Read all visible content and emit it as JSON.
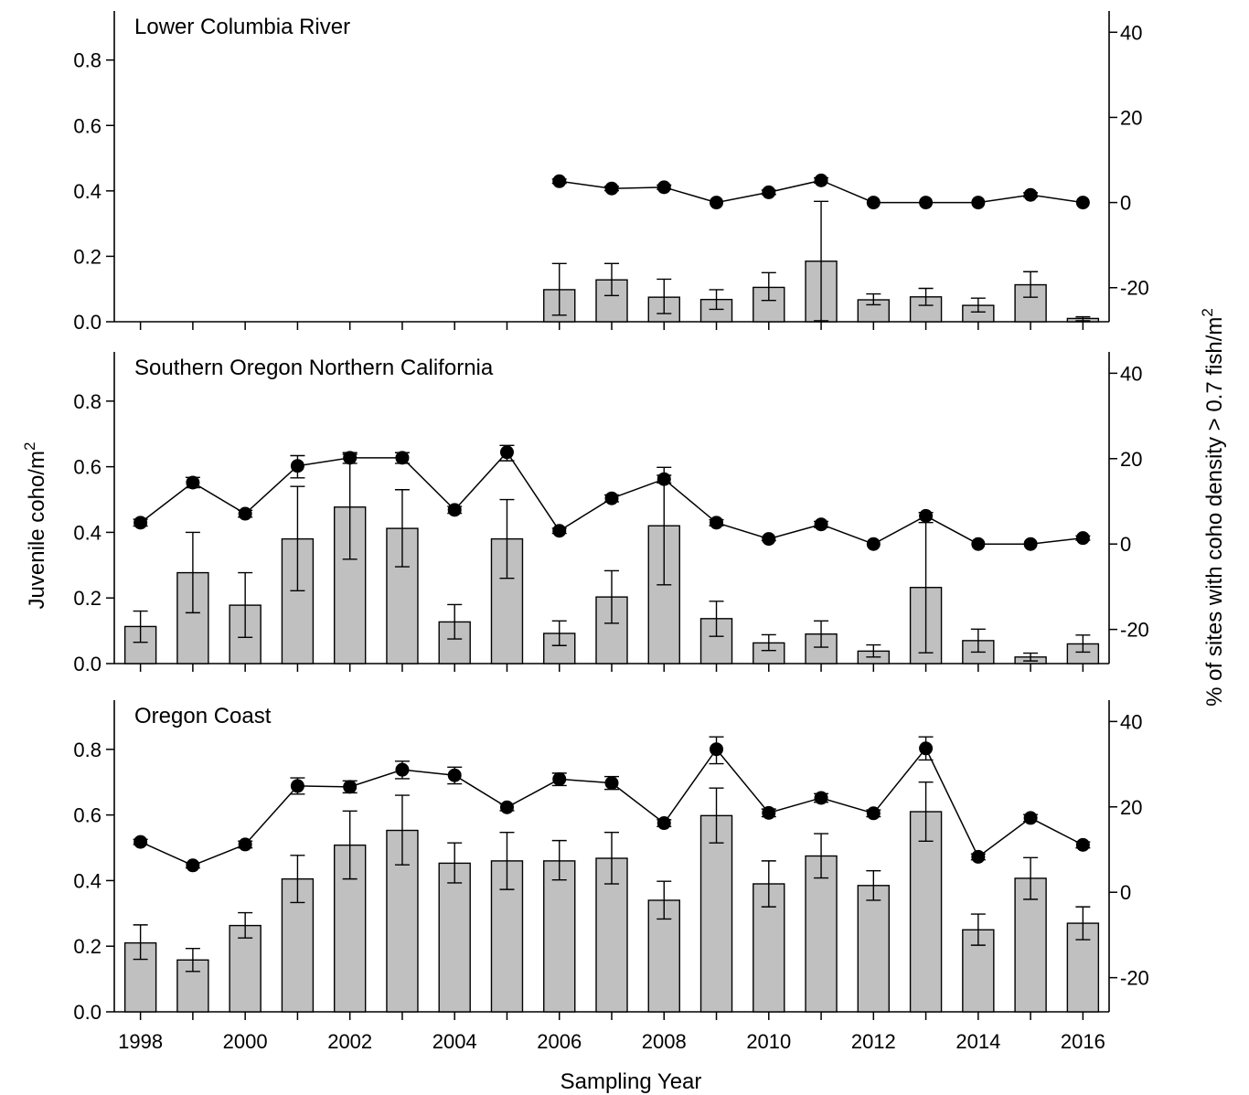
{
  "figure": {
    "xlabel": "Sampling Year",
    "ylabel_left": "Juvenile coho/m",
    "ylabel_left_sup": "2",
    "ylabel_right": "% of sites with coho density > 0.7 fish/m",
    "ylabel_right_sup": "2",
    "bar_color": "#c0c0c0",
    "line_color": "#000000"
  },
  "chart_data": [
    {
      "type": "bar+line",
      "title": "Lower Columbia River",
      "xlim": [
        1997.5,
        2016.5
      ],
      "x_ticks": [
        1998,
        2000,
        2002,
        2004,
        2006,
        2008,
        2010,
        2012,
        2014,
        2016
      ],
      "x_minor_ticks": [
        1999,
        2001,
        2003,
        2005,
        2007,
        2009,
        2011,
        2013,
        2015
      ],
      "left_axis": {
        "ylim": [
          0,
          0.95
        ],
        "ticks": [
          0,
          0.2,
          0.4,
          0.6,
          0.8
        ],
        "tick_labels": [
          "0.0",
          "0.2",
          "0.4",
          "0.6",
          "0.8"
        ]
      },
      "right_axis": {
        "ylim": [
          -28,
          45
        ],
        "ticks": [
          -20,
          0,
          20,
          40
        ],
        "tick_labels": [
          "-20",
          "0",
          "20",
          "40"
        ]
      },
      "bars": [
        {
          "x": 2006,
          "value": 0.098,
          "err_low": 0.02,
          "err_high": 0.178
        },
        {
          "x": 2007,
          "value": 0.128,
          "err_low": 0.08,
          "err_high": 0.178
        },
        {
          "x": 2008,
          "value": 0.075,
          "err_low": 0.025,
          "err_high": 0.13
        },
        {
          "x": 2009,
          "value": 0.068,
          "err_low": 0.038,
          "err_high": 0.098
        },
        {
          "x": 2010,
          "value": 0.105,
          "err_low": 0.065,
          "err_high": 0.15
        },
        {
          "x": 2011,
          "value": 0.185,
          "err_low": 0.003,
          "err_high": 0.368
        },
        {
          "x": 2012,
          "value": 0.067,
          "err_low": 0.052,
          "err_high": 0.085
        },
        {
          "x": 2013,
          "value": 0.076,
          "err_low": 0.05,
          "err_high": 0.102
        },
        {
          "x": 2014,
          "value": 0.05,
          "err_low": 0.03,
          "err_high": 0.072
        },
        {
          "x": 2015,
          "value": 0.113,
          "err_low": 0.075,
          "err_high": 0.153
        },
        {
          "x": 2016,
          "value": 0.01,
          "err_low": 0.003,
          "err_high": 0.015
        }
      ],
      "line": [
        {
          "x": 2006,
          "y": 5,
          "err_low": 4.5,
          "err_high": 5.5
        },
        {
          "x": 2007,
          "y": 3.3,
          "err_low": 2.8,
          "err_high": 3.8
        },
        {
          "x": 2008,
          "y": 3.6,
          "err_low": 3.1,
          "err_high": 4.1
        },
        {
          "x": 2009,
          "y": 0,
          "err_low": 0,
          "err_high": 0
        },
        {
          "x": 2010,
          "y": 2.4,
          "err_low": 1.9,
          "err_high": 2.9
        },
        {
          "x": 2011,
          "y": 5.2,
          "err_low": 4.6,
          "err_high": 5.8
        },
        {
          "x": 2012,
          "y": 0,
          "err_low": 0,
          "err_high": 0
        },
        {
          "x": 2013,
          "y": 0,
          "err_low": 0,
          "err_high": 0
        },
        {
          "x": 2014,
          "y": 0,
          "err_low": 0,
          "err_high": 0
        },
        {
          "x": 2015,
          "y": 1.8,
          "err_low": 1.3,
          "err_high": 2.3
        },
        {
          "x": 2016,
          "y": 0,
          "err_low": 0,
          "err_high": 0
        }
      ]
    },
    {
      "type": "bar+line",
      "title": "Southern Oregon Northern California",
      "xlim": [
        1997.5,
        2016.5
      ],
      "x_ticks": [
        1998,
        2000,
        2002,
        2004,
        2006,
        2008,
        2010,
        2012,
        2014,
        2016
      ],
      "x_minor_ticks": [
        1999,
        2001,
        2003,
        2005,
        2007,
        2009,
        2011,
        2013,
        2015
      ],
      "left_axis": {
        "ylim": [
          0,
          0.95
        ],
        "ticks": [
          0,
          0.2,
          0.4,
          0.6,
          0.8
        ],
        "tick_labels": [
          "0.0",
          "0.2",
          "0.4",
          "0.6",
          "0.8"
        ]
      },
      "right_axis": {
        "ylim": [
          -28,
          45
        ],
        "ticks": [
          -20,
          0,
          20,
          40
        ],
        "tick_labels": [
          "-20",
          "0",
          "20",
          "40"
        ]
      },
      "bars": [
        {
          "x": 1998,
          "value": 0.113,
          "err_low": 0.065,
          "err_high": 0.16
        },
        {
          "x": 1999,
          "value": 0.277,
          "err_low": 0.155,
          "err_high": 0.4
        },
        {
          "x": 2000,
          "value": 0.178,
          "err_low": 0.08,
          "err_high": 0.277
        },
        {
          "x": 2001,
          "value": 0.38,
          "err_low": 0.222,
          "err_high": 0.54
        },
        {
          "x": 2002,
          "value": 0.477,
          "err_low": 0.318,
          "err_high": 0.638
        },
        {
          "x": 2003,
          "value": 0.412,
          "err_low": 0.295,
          "err_high": 0.53
        },
        {
          "x": 2004,
          "value": 0.127,
          "err_low": 0.075,
          "err_high": 0.18
        },
        {
          "x": 2005,
          "value": 0.38,
          "err_low": 0.26,
          "err_high": 0.5
        },
        {
          "x": 2006,
          "value": 0.092,
          "err_low": 0.055,
          "err_high": 0.13
        },
        {
          "x": 2007,
          "value": 0.203,
          "err_low": 0.123,
          "err_high": 0.283
        },
        {
          "x": 2008,
          "value": 0.42,
          "err_low": 0.24,
          "err_high": 0.598
        },
        {
          "x": 2009,
          "value": 0.137,
          "err_low": 0.083,
          "err_high": 0.19
        },
        {
          "x": 2010,
          "value": 0.063,
          "err_low": 0.04,
          "err_high": 0.088
        },
        {
          "x": 2011,
          "value": 0.09,
          "err_low": 0.05,
          "err_high": 0.13
        },
        {
          "x": 2012,
          "value": 0.038,
          "err_low": 0.02,
          "err_high": 0.057
        },
        {
          "x": 2013,
          "value": 0.232,
          "err_low": 0.033,
          "err_high": 0.43
        },
        {
          "x": 2014,
          "value": 0.07,
          "err_low": 0.035,
          "err_high": 0.105
        },
        {
          "x": 2015,
          "value": 0.02,
          "err_low": 0.008,
          "err_high": 0.032
        },
        {
          "x": 2016,
          "value": 0.06,
          "err_low": 0.035,
          "err_high": 0.087
        }
      ],
      "line": [
        {
          "x": 1998,
          "y": 5,
          "err_low": 4.2,
          "err_high": 5.8
        },
        {
          "x": 1999,
          "y": 14.4,
          "err_low": 13.2,
          "err_high": 15.6
        },
        {
          "x": 2000,
          "y": 7.1,
          "err_low": 6.3,
          "err_high": 7.9
        },
        {
          "x": 2001,
          "y": 18.3,
          "err_low": 15.5,
          "err_high": 20.7
        },
        {
          "x": 2002,
          "y": 20.2,
          "err_low": 18.9,
          "err_high": 21.4
        },
        {
          "x": 2003,
          "y": 20.2,
          "err_low": 18.9,
          "err_high": 21.4
        },
        {
          "x": 2004,
          "y": 8,
          "err_low": 7.2,
          "err_high": 8.8
        },
        {
          "x": 2005,
          "y": 21.5,
          "err_low": 19.5,
          "err_high": 23.1
        },
        {
          "x": 2006,
          "y": 3.1,
          "err_low": 2.5,
          "err_high": 3.7
        },
        {
          "x": 2007,
          "y": 10.7,
          "err_low": 9.9,
          "err_high": 11.5
        },
        {
          "x": 2008,
          "y": 15.2,
          "err_low": 14.3,
          "err_high": 16.1
        },
        {
          "x": 2009,
          "y": 5,
          "err_low": 4.3,
          "err_high": 5.7
        },
        {
          "x": 2010,
          "y": 1.2,
          "err_low": 0.8,
          "err_high": 1.6
        },
        {
          "x": 2011,
          "y": 4.6,
          "err_low": 3.9,
          "err_high": 5.3
        },
        {
          "x": 2012,
          "y": 0,
          "err_low": 0,
          "err_high": 0
        },
        {
          "x": 2013,
          "y": 6.6,
          "err_low": 5.8,
          "err_high": 7.4
        },
        {
          "x": 2014,
          "y": 0,
          "err_low": 0,
          "err_high": 0
        },
        {
          "x": 2015,
          "y": 0,
          "err_low": 0,
          "err_high": 0
        },
        {
          "x": 2016,
          "y": 1.4,
          "err_low": 0.9,
          "err_high": 1.9
        }
      ]
    },
    {
      "type": "bar+line",
      "title": "Oregon Coast",
      "xlim": [
        1997.5,
        2016.5
      ],
      "x_ticks": [
        1998,
        2000,
        2002,
        2004,
        2006,
        2008,
        2010,
        2012,
        2014,
        2016
      ],
      "x_minor_ticks": [
        1999,
        2001,
        2003,
        2005,
        2007,
        2009,
        2011,
        2013,
        2015
      ],
      "x_tick_labels": [
        "1998",
        "2000",
        "2002",
        "2004",
        "2006",
        "2008",
        "2010",
        "2012",
        "2014",
        "2016"
      ],
      "left_axis": {
        "ylim": [
          0,
          0.95
        ],
        "ticks": [
          0,
          0.2,
          0.4,
          0.6,
          0.8
        ],
        "tick_labels": [
          "0.0",
          "0.2",
          "0.4",
          "0.6",
          "0.8"
        ]
      },
      "right_axis": {
        "ylim": [
          -28,
          45
        ],
        "ticks": [
          -20,
          0,
          20,
          40
        ],
        "tick_labels": [
          "-20",
          "0",
          "20",
          "40"
        ]
      },
      "bars": [
        {
          "x": 1998,
          "value": 0.21,
          "err_low": 0.16,
          "err_high": 0.265
        },
        {
          "x": 1999,
          "value": 0.158,
          "err_low": 0.123,
          "err_high": 0.193
        },
        {
          "x": 2000,
          "value": 0.263,
          "err_low": 0.225,
          "err_high": 0.302
        },
        {
          "x": 2001,
          "value": 0.405,
          "err_low": 0.333,
          "err_high": 0.477
        },
        {
          "x": 2002,
          "value": 0.508,
          "err_low": 0.405,
          "err_high": 0.612
        },
        {
          "x": 2003,
          "value": 0.553,
          "err_low": 0.448,
          "err_high": 0.66
        },
        {
          "x": 2004,
          "value": 0.453,
          "err_low": 0.393,
          "err_high": 0.515
        },
        {
          "x": 2005,
          "value": 0.46,
          "err_low": 0.373,
          "err_high": 0.547
        },
        {
          "x": 2006,
          "value": 0.46,
          "err_low": 0.402,
          "err_high": 0.522
        },
        {
          "x": 2007,
          "value": 0.468,
          "err_low": 0.39,
          "err_high": 0.547
        },
        {
          "x": 2008,
          "value": 0.34,
          "err_low": 0.283,
          "err_high": 0.398
        },
        {
          "x": 2009,
          "value": 0.598,
          "err_low": 0.515,
          "err_high": 0.682
        },
        {
          "x": 2010,
          "value": 0.39,
          "err_low": 0.32,
          "err_high": 0.46
        },
        {
          "x": 2011,
          "value": 0.475,
          "err_low": 0.408,
          "err_high": 0.543
        },
        {
          "x": 2012,
          "value": 0.385,
          "err_low": 0.34,
          "err_high": 0.43
        },
        {
          "x": 2013,
          "value": 0.61,
          "err_low": 0.52,
          "err_high": 0.7
        },
        {
          "x": 2014,
          "value": 0.25,
          "err_low": 0.203,
          "err_high": 0.298
        },
        {
          "x": 2015,
          "value": 0.407,
          "err_low": 0.343,
          "err_high": 0.47
        },
        {
          "x": 2016,
          "value": 0.27,
          "err_low": 0.22,
          "err_high": 0.32
        }
      ],
      "line": [
        {
          "x": 1998,
          "y": 11.8,
          "err_low": 11.2,
          "err_high": 12.4
        },
        {
          "x": 1999,
          "y": 6.3,
          "err_low": 5.7,
          "err_high": 6.9
        },
        {
          "x": 2000,
          "y": 11.2,
          "err_low": 10.4,
          "err_high": 12.0
        },
        {
          "x": 2001,
          "y": 24.9,
          "err_low": 23.0,
          "err_high": 26.8
        },
        {
          "x": 2002,
          "y": 24.7,
          "err_low": 23.3,
          "err_high": 26.1
        },
        {
          "x": 2003,
          "y": 28.7,
          "err_low": 26.6,
          "err_high": 30.7
        },
        {
          "x": 2004,
          "y": 27.4,
          "err_low": 25.4,
          "err_high": 29.3
        },
        {
          "x": 2005,
          "y": 19.9,
          "err_low": 19.1,
          "err_high": 20.7
        },
        {
          "x": 2006,
          "y": 26.5,
          "err_low": 25.0,
          "err_high": 27.9
        },
        {
          "x": 2007,
          "y": 25.6,
          "err_low": 24.1,
          "err_high": 27.1
        },
        {
          "x": 2008,
          "y": 16.2,
          "err_low": 15.4,
          "err_high": 17.0
        },
        {
          "x": 2009,
          "y": 33.5,
          "err_low": 30.1,
          "err_high": 36.4
        },
        {
          "x": 2010,
          "y": 18.6,
          "err_low": 17.7,
          "err_high": 19.5
        },
        {
          "x": 2011,
          "y": 22.1,
          "err_low": 21.1,
          "err_high": 23.1
        },
        {
          "x": 2012,
          "y": 18.5,
          "err_low": 17.7,
          "err_high": 19.3
        },
        {
          "x": 2013,
          "y": 33.7,
          "err_low": 31.0,
          "err_high": 36.4
        },
        {
          "x": 2014,
          "y": 8.3,
          "err_low": 7.6,
          "err_high": 9.0
        },
        {
          "x": 2015,
          "y": 17.4,
          "err_low": 16.6,
          "err_high": 18.2
        },
        {
          "x": 2016,
          "y": 11.1,
          "err_low": 10.4,
          "err_high": 11.8
        }
      ]
    }
  ]
}
